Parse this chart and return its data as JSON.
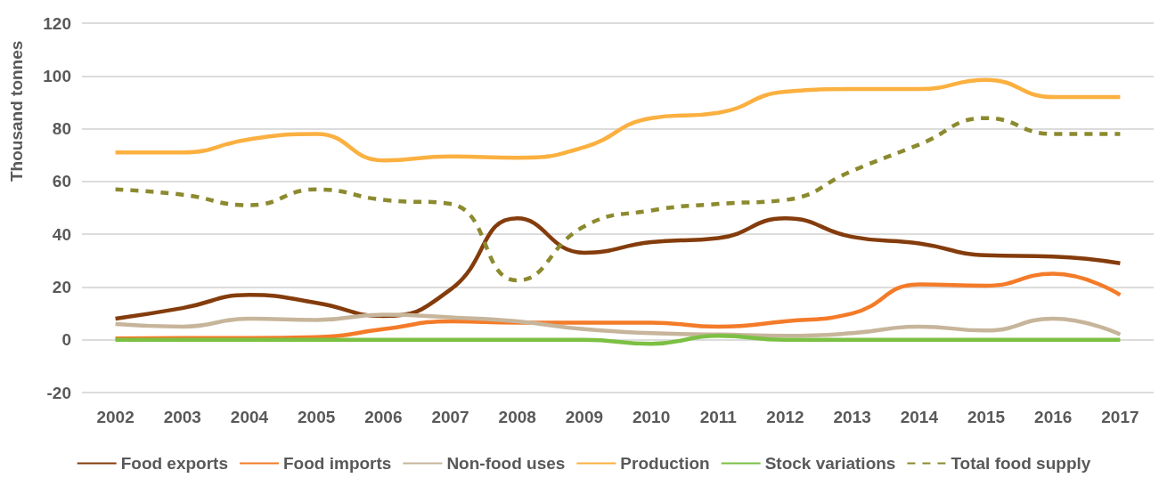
{
  "chart_data": {
    "type": "line",
    "ylabel": "Thousand tonnes",
    "categories": [
      "2002",
      "2003",
      "2004",
      "2005",
      "2006",
      "2007",
      "2008",
      "2009",
      "2010",
      "2011",
      "2012",
      "2013",
      "2014",
      "2015",
      "2016",
      "2017"
    ],
    "series": [
      {
        "name": "Food exports",
        "color": "#843c0c",
        "values": [
          8,
          12,
          17,
          14,
          9,
          19,
          46,
          33,
          37,
          38.5,
          46,
          39,
          36.5,
          32,
          31.5,
          29
        ]
      },
      {
        "name": "Food imports",
        "color": "#f47b29",
        "values": [
          0.5,
          0.7,
          0.7,
          1,
          4,
          7,
          6.5,
          6.5,
          6.5,
          5,
          7,
          10,
          21,
          20.5,
          25,
          17
        ]
      },
      {
        "name": "Non-food uses",
        "color": "#c7b59b",
        "values": [
          6,
          5,
          8,
          7.5,
          9.5,
          8.5,
          7,
          4,
          2.5,
          2,
          1.5,
          2.5,
          5,
          3.5,
          8,
          2
        ]
      },
      {
        "name": "Production",
        "color": "#fbb040",
        "values": [
          71,
          71,
          76,
          78,
          68,
          69.5,
          69,
          73,
          84,
          86,
          94,
          95,
          95,
          98.5,
          92,
          92
        ]
      },
      {
        "name": "Stock variations",
        "color": "#7bc043",
        "values": [
          0,
          0,
          0,
          0,
          0,
          0,
          0,
          0,
          -1.5,
          1.5,
          0,
          0,
          0,
          0,
          0,
          0
        ]
      },
      {
        "name": "Total food supply",
        "color": "#8c8a2f",
        "line_style": "dashed",
        "values": [
          57,
          55,
          51,
          57,
          53,
          51.5,
          22.5,
          43,
          49,
          51.5,
          53,
          64,
          74,
          84,
          78,
          78
        ]
      }
    ],
    "ylim": [
      -20,
      120
    ],
    "yticks": [
      -20,
      0,
      20,
      40,
      60,
      80,
      100,
      120
    ],
    "grid": "y",
    "legend": "bottom",
    "marker": "none",
    "line_style": "solid"
  }
}
